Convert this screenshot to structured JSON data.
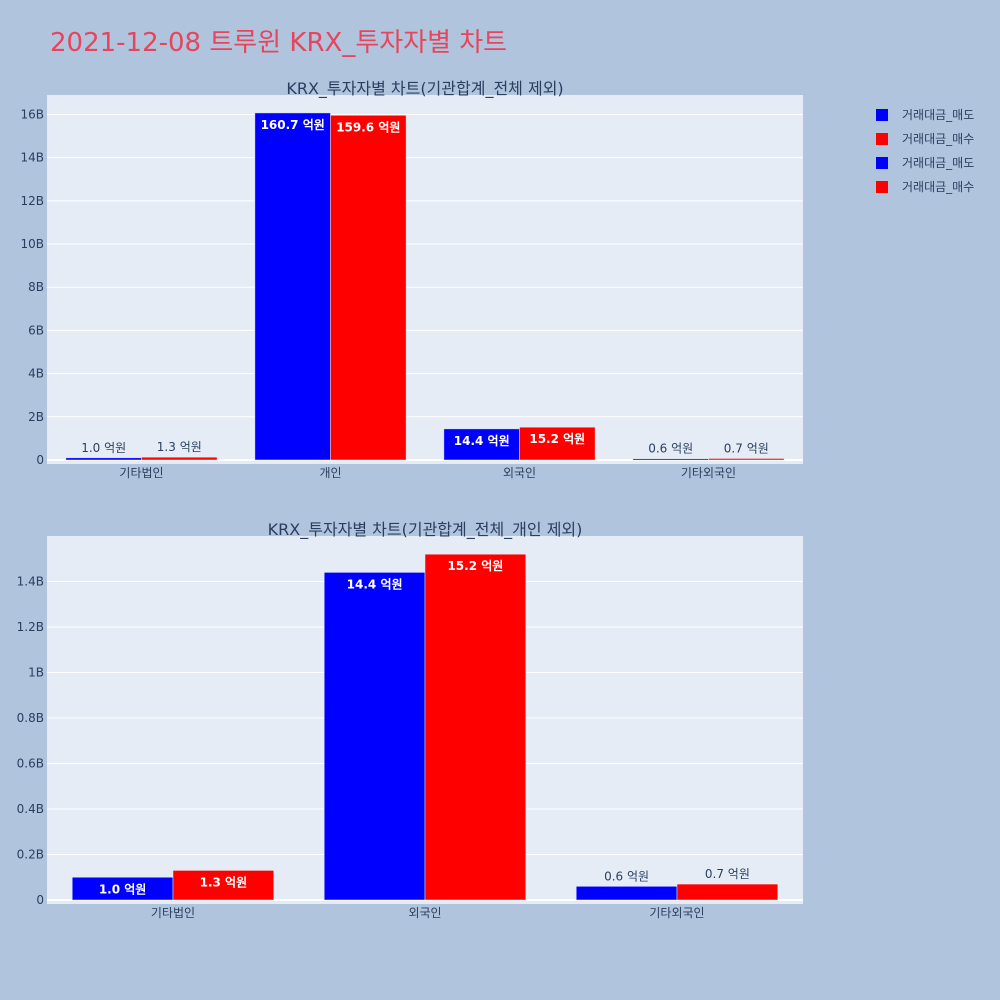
{
  "page": {
    "title": "2021-12-08 트루윈 KRX_투자자별 차트"
  },
  "legend": [
    {
      "label": "거래대금_매도",
      "color": "#0000ff"
    },
    {
      "label": "거래대금_매수",
      "color": "#ff0000"
    },
    {
      "label": "거래대금_매도",
      "color": "#0000ff"
    },
    {
      "label": "거래대금_매수",
      "color": "#ff0000"
    }
  ],
  "chart_data": [
    {
      "type": "bar",
      "title": "KRX_투자자별 차트(기관합계_전체 제외)",
      "categories": [
        "기타법인",
        "개인",
        "외국인",
        "기타외국인"
      ],
      "series": [
        {
          "name": "거래대금_매도",
          "color": "#0000ff",
          "values": [
            100000000,
            16070000000,
            1440000000,
            60000000
          ],
          "labels": [
            "1.0 억원",
            "160.7 억원",
            "14.4 억원",
            "0.6 억원"
          ]
        },
        {
          "name": "거래대금_매수",
          "color": "#ff0000",
          "values": [
            130000000,
            15960000000,
            1520000000,
            70000000
          ],
          "labels": [
            "1.3 억원",
            "159.6 억원",
            "15.2 억원",
            "0.7 억원"
          ]
        }
      ],
      "yticks": [
        0,
        2000000000,
        4000000000,
        6000000000,
        8000000000,
        10000000000,
        12000000000,
        14000000000,
        16000000000
      ],
      "ytick_labels": [
        "0",
        "2B",
        "4B",
        "6B",
        "8B",
        "10B",
        "12B",
        "14B",
        "16B"
      ],
      "ylim": [
        0,
        16900000000
      ],
      "grid": true
    },
    {
      "type": "bar",
      "title": "KRX_투자자별 차트(기관합계_전체_개인 제외)",
      "categories": [
        "기타법인",
        "외국인",
        "기타외국인"
      ],
      "series": [
        {
          "name": "거래대금_매도",
          "color": "#0000ff",
          "values": [
            100000000,
            1440000000,
            60000000
          ],
          "labels": [
            "1.0 억원",
            "14.4 억원",
            "0.6 억원"
          ]
        },
        {
          "name": "거래대금_매수",
          "color": "#ff0000",
          "values": [
            130000000,
            1520000000,
            70000000
          ],
          "labels": [
            "1.3 억원",
            "15.2 억원",
            "0.7 억원"
          ]
        }
      ],
      "yticks": [
        0,
        200000000,
        400000000,
        600000000,
        800000000,
        1000000000,
        1200000000,
        1400000000
      ],
      "ytick_labels": [
        "0",
        "0.2B",
        "0.4B",
        "0.6B",
        "0.8B",
        "1B",
        "1.2B",
        "1.4B"
      ],
      "ylim": [
        0,
        1600000000
      ],
      "grid": true
    }
  ]
}
